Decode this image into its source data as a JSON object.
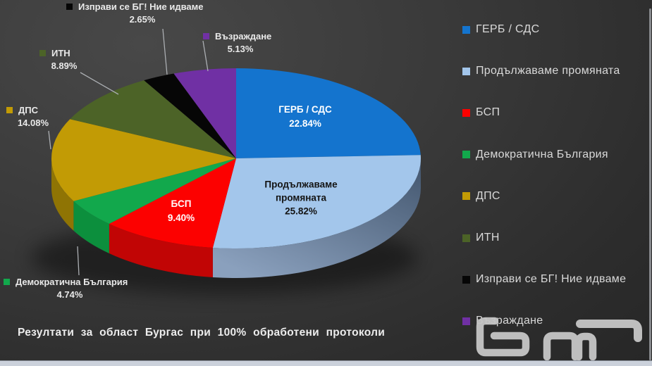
{
  "chart_data": {
    "type": "pie",
    "style": "3d",
    "unit": "%",
    "title": "",
    "caption": "Резултати за област Бургас при 100% обработени протоколи",
    "legend_position": "right",
    "slices": [
      {
        "label": "ГЕРБ / СДС",
        "value": 22.84,
        "pct_label": "22.84%",
        "color": "#1474ce",
        "side_color": "#0e4f8e",
        "label_placement": "inside",
        "label_color": "#ffffff"
      },
      {
        "label": "Продължаваме промяната",
        "value": 25.82,
        "pct_label": "25.82%",
        "color": "#a3c6eb",
        "side_color": "#42556d",
        "side_color2": "#8aa0bd",
        "label_placement": "inside",
        "label_color": "#141414"
      },
      {
        "label": "БСП",
        "value": 9.4,
        "pct_label": "9.40%",
        "color": "#fc0100",
        "side_color": "#c10505",
        "label_placement": "inside",
        "label_color": "#ffffff"
      },
      {
        "label": "Демократична България",
        "value": 4.74,
        "pct_label": "4.74%",
        "color": "#12a84c",
        "side_color": "#0c8f3d",
        "label_placement": "outside",
        "label_color": "#e9e9e9"
      },
      {
        "label": "ДПС",
        "value": 14.08,
        "pct_label": "14.08%",
        "color": "#c29b05",
        "side_color": "#8f7404",
        "label_placement": "outside",
        "label_color": "#e9e9e9"
      },
      {
        "label": "ИТН",
        "value": 8.89,
        "pct_label": "8.89%",
        "color": "#4c6327",
        "side_color": "#36471b",
        "label_placement": "outside",
        "label_color": "#e9e9e9"
      },
      {
        "label": "Изправи се БГ! Ние идваме",
        "value": 2.65,
        "pct_label": "2.65%",
        "color": "#060606",
        "side_color": "#000000",
        "label_placement": "outside",
        "label_color": "#e9e9e9"
      },
      {
        "label": "Възраждане",
        "value": 5.13,
        "pct_label": "5.13%",
        "color": "#7030a4",
        "side_color": "#4c2070",
        "label_placement": "outside",
        "label_color": "#e9e9e9"
      }
    ]
  },
  "logo": {
    "alt": "бнр"
  }
}
